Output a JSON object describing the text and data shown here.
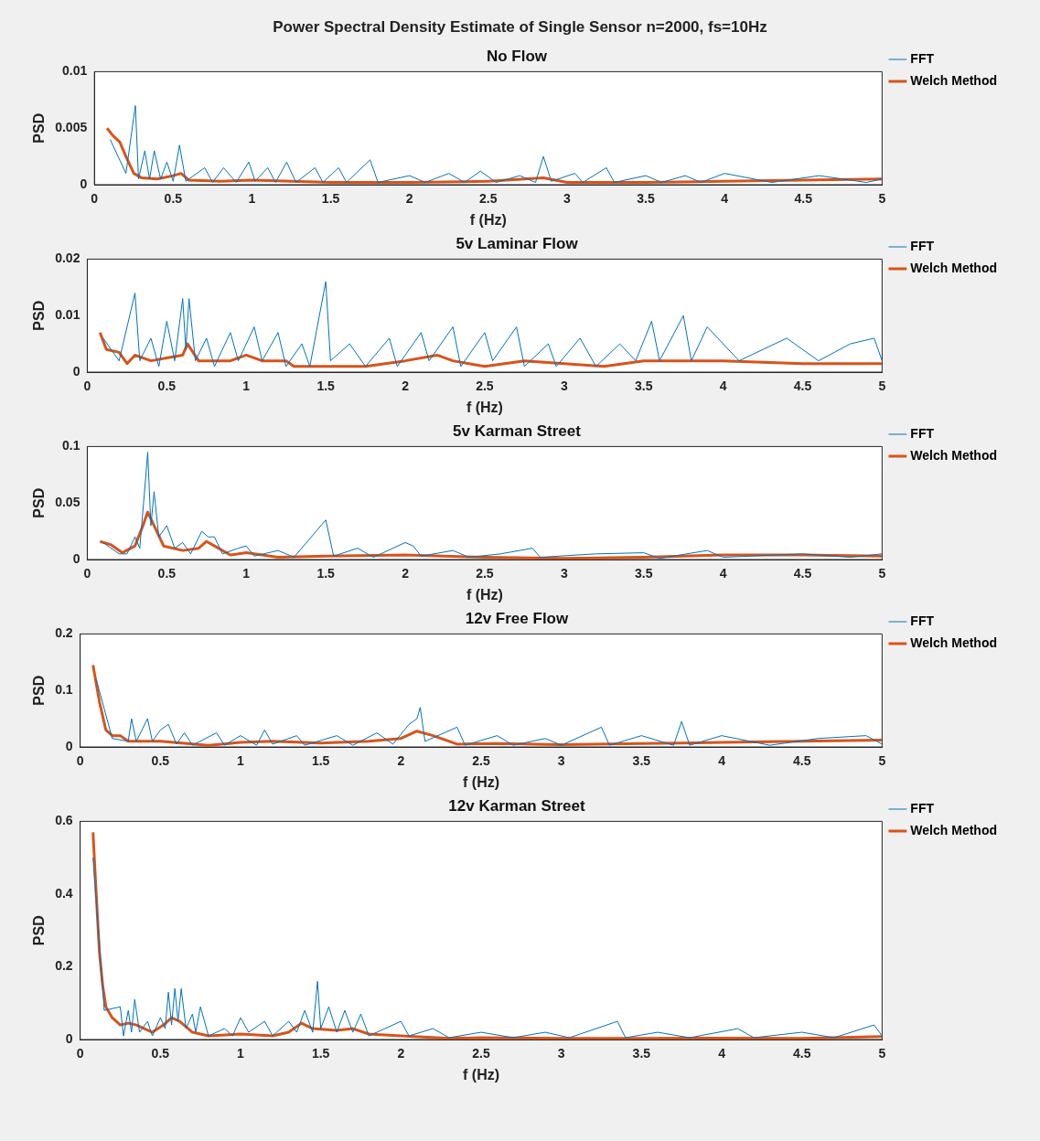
{
  "chart_data": [
    {
      "type": "line",
      "title": "No Flow",
      "xlabel": "f (Hz)",
      "ylabel": "PSD",
      "xlim": [
        0,
        5
      ],
      "xticks": [
        0,
        0.5,
        1,
        1.5,
        2,
        2.5,
        3,
        3.5,
        4,
        4.5,
        5
      ],
      "ylim": [
        0,
        0.01
      ],
      "yticks": [
        0,
        0.005,
        0.01
      ],
      "legend": "right",
      "annotations": [
        "Power Spectral Density Estimate of Single Sensor n=2000, fs=10Hz"
      ],
      "series": [
        {
          "name": "FFT",
          "color": "#0072bd",
          "x": [
            0.1,
            0.2,
            0.26,
            0.28,
            0.32,
            0.35,
            0.38,
            0.42,
            0.46,
            0.5,
            0.54,
            0.58,
            0.7,
            0.75,
            0.82,
            0.9,
            0.98,
            1.02,
            1.1,
            1.15,
            1.22,
            1.28,
            1.4,
            1.45,
            1.55,
            1.6,
            1.75,
            1.8,
            2.0,
            2.1,
            2.25,
            2.35,
            2.45,
            2.55,
            2.7,
            2.8,
            2.85,
            2.9,
            3.05,
            3.1,
            3.25,
            3.3,
            3.5,
            3.6,
            3.75,
            3.85,
            4.0,
            4.3,
            4.6,
            4.9,
            5
          ],
          "values": [
            0.004,
            0.001,
            0.007,
            0.0005,
            0.003,
            0.0005,
            0.003,
            0.0005,
            0.002,
            0.0003,
            0.0035,
            0.0003,
            0.0015,
            0.0002,
            0.0015,
            0.0002,
            0.002,
            0.0003,
            0.0015,
            0.0002,
            0.002,
            0.0002,
            0.0015,
            0.0002,
            0.0015,
            0.0002,
            0.0022,
            0.0002,
            0.0008,
            0.0002,
            0.001,
            0.0002,
            0.0012,
            0.0002,
            0.0008,
            0.0002,
            0.0025,
            0.0003,
            0.001,
            0.0002,
            0.0015,
            0.0002,
            0.0008,
            0.0002,
            0.0008,
            0.0002,
            0.001,
            0.0002,
            0.0008,
            0.0002,
            0.0005
          ]
        },
        {
          "name": "Welch Method",
          "color": "#d95319",
          "x": [
            0.08,
            0.12,
            0.16,
            0.2,
            0.25,
            0.3,
            0.4,
            0.5,
            0.55,
            0.6,
            0.8,
            1.0,
            1.5,
            2.0,
            2.5,
            2.85,
            3.0,
            3.5,
            4.0,
            4.5,
            5
          ],
          "values": [
            0.005,
            0.0043,
            0.0038,
            0.0025,
            0.001,
            0.0006,
            0.0005,
            0.0008,
            0.001,
            0.0004,
            0.0003,
            0.0004,
            0.0002,
            0.0002,
            0.0003,
            0.0006,
            0.0002,
            0.0002,
            0.0003,
            0.0004,
            0.0005
          ]
        }
      ]
    },
    {
      "type": "line",
      "title": "5v Laminar Flow",
      "xlabel": "f (Hz)",
      "ylabel": "PSD",
      "xlim": [
        0,
        5
      ],
      "xticks": [
        0,
        0.5,
        1,
        1.5,
        2,
        2.5,
        3,
        3.5,
        4,
        4.5,
        5
      ],
      "ylim": [
        0,
        0.02
      ],
      "yticks": [
        0,
        0.01,
        0.02
      ],
      "legend": "right",
      "series": [
        {
          "name": "FFT",
          "color": "#0072bd",
          "x": [
            0.1,
            0.2,
            0.3,
            0.33,
            0.4,
            0.45,
            0.5,
            0.55,
            0.6,
            0.62,
            0.64,
            0.68,
            0.75,
            0.8,
            0.9,
            0.95,
            1.05,
            1.1,
            1.2,
            1.25,
            1.35,
            1.4,
            1.5,
            1.53,
            1.65,
            1.75,
            1.9,
            1.95,
            2.1,
            2.15,
            2.3,
            2.35,
            2.5,
            2.55,
            2.7,
            2.75,
            2.9,
            2.95,
            3.1,
            3.2,
            3.35,
            3.45,
            3.55,
            3.6,
            3.75,
            3.8,
            3.9,
            4.1,
            4.4,
            4.6,
            4.8,
            4.95,
            5
          ],
          "values": [
            0.006,
            0.002,
            0.014,
            0.002,
            0.006,
            0.001,
            0.009,
            0.002,
            0.013,
            0.004,
            0.013,
            0.002,
            0.006,
            0.001,
            0.007,
            0.002,
            0.008,
            0.002,
            0.007,
            0.001,
            0.005,
            0.001,
            0.016,
            0.002,
            0.005,
            0.001,
            0.006,
            0.001,
            0.007,
            0.002,
            0.008,
            0.001,
            0.007,
            0.002,
            0.008,
            0.001,
            0.005,
            0.001,
            0.006,
            0.001,
            0.005,
            0.002,
            0.009,
            0.002,
            0.01,
            0.002,
            0.008,
            0.002,
            0.006,
            0.002,
            0.005,
            0.006,
            0.002
          ]
        },
        {
          "name": "Welch Method",
          "color": "#d95319",
          "x": [
            0.08,
            0.12,
            0.2,
            0.25,
            0.3,
            0.4,
            0.5,
            0.6,
            0.63,
            0.7,
            0.9,
            1.0,
            1.1,
            1.25,
            1.3,
            1.5,
            1.75,
            2.0,
            2.2,
            2.3,
            2.5,
            2.75,
            3.0,
            3.25,
            3.5,
            4.0,
            4.5,
            5
          ],
          "values": [
            0.007,
            0.004,
            0.0035,
            0.0015,
            0.003,
            0.002,
            0.0025,
            0.003,
            0.005,
            0.002,
            0.002,
            0.003,
            0.002,
            0.002,
            0.001,
            0.001,
            0.001,
            0.002,
            0.003,
            0.002,
            0.001,
            0.002,
            0.0015,
            0.001,
            0.002,
            0.002,
            0.0015,
            0.0015
          ]
        }
      ]
    },
    {
      "type": "line",
      "title": "5v Karman Street",
      "xlabel": "f (Hz)",
      "ylabel": "PSD",
      "xlim": [
        0,
        5
      ],
      "xticks": [
        0,
        0.5,
        1,
        1.5,
        2,
        2.5,
        3,
        3.5,
        4,
        4.5,
        5
      ],
      "ylim": [
        0,
        0.1
      ],
      "yticks": [
        0,
        0.05,
        0.1
      ],
      "legend": "right",
      "series": [
        {
          "name": "FFT",
          "color": "#0072bd",
          "x": [
            0.1,
            0.2,
            0.25,
            0.3,
            0.33,
            0.36,
            0.38,
            0.4,
            0.42,
            0.45,
            0.5,
            0.55,
            0.6,
            0.65,
            0.72,
            0.76,
            0.8,
            0.85,
            0.95,
            1.0,
            1.05,
            1.2,
            1.3,
            1.5,
            1.55,
            1.7,
            1.8,
            2.0,
            2.05,
            2.1,
            2.3,
            2.4,
            2.6,
            2.8,
            2.85,
            3.2,
            3.5,
            3.6,
            3.9,
            4.0,
            4.5,
            4.8,
            5
          ],
          "values": [
            0.015,
            0.005,
            0.005,
            0.02,
            0.01,
            0.06,
            0.095,
            0.03,
            0.06,
            0.02,
            0.03,
            0.01,
            0.015,
            0.005,
            0.025,
            0.02,
            0.02,
            0.005,
            0.01,
            0.012,
            0.003,
            0.008,
            0.002,
            0.035,
            0.003,
            0.01,
            0.002,
            0.015,
            0.012,
            0.003,
            0.008,
            0.002,
            0.005,
            0.01,
            0.002,
            0.005,
            0.006,
            0.001,
            0.008,
            0.002,
            0.005,
            0.002,
            0.005
          ]
        },
        {
          "name": "Welch Method",
          "color": "#d95319",
          "x": [
            0.08,
            0.15,
            0.22,
            0.3,
            0.35,
            0.38,
            0.42,
            0.48,
            0.6,
            0.7,
            0.75,
            0.8,
            0.9,
            1.0,
            1.2,
            1.5,
            2.0,
            2.5,
            3.0,
            3.5,
            4.0,
            4.5,
            5
          ],
          "values": [
            0.016,
            0.013,
            0.006,
            0.012,
            0.03,
            0.042,
            0.03,
            0.012,
            0.008,
            0.01,
            0.016,
            0.012,
            0.004,
            0.006,
            0.002,
            0.003,
            0.004,
            0.002,
            0.001,
            0.002,
            0.004,
            0.004,
            0.003
          ]
        }
      ]
    },
    {
      "type": "line",
      "title": "12v Free Flow",
      "xlabel": "f (Hz)",
      "ylabel": "PSD",
      "xlim": [
        0,
        5
      ],
      "xticks": [
        0,
        0.5,
        1,
        1.5,
        2,
        2.5,
        3,
        3.5,
        4,
        4.5,
        5
      ],
      "ylim": [
        0,
        0.2
      ],
      "yticks": [
        0,
        0.1,
        0.2
      ],
      "legend": "right",
      "series": [
        {
          "name": "FFT",
          "color": "#0072bd",
          "x": [
            0.1,
            0.2,
            0.3,
            0.32,
            0.35,
            0.42,
            0.45,
            0.5,
            0.55,
            0.6,
            0.65,
            0.7,
            0.85,
            0.9,
            1.0,
            1.1,
            1.15,
            1.2,
            1.35,
            1.4,
            1.6,
            1.7,
            1.85,
            1.95,
            2.05,
            2.1,
            2.12,
            2.15,
            2.35,
            2.4,
            2.6,
            2.7,
            2.9,
            3.0,
            3.25,
            3.3,
            3.5,
            3.7,
            3.75,
            3.8,
            4.0,
            4.3,
            4.6,
            4.9,
            5
          ],
          "values": [
            0.12,
            0.015,
            0.01,
            0.05,
            0.01,
            0.05,
            0.01,
            0.03,
            0.04,
            0.005,
            0.025,
            0.003,
            0.025,
            0.003,
            0.02,
            0.003,
            0.03,
            0.005,
            0.02,
            0.003,
            0.02,
            0.003,
            0.025,
            0.005,
            0.04,
            0.05,
            0.07,
            0.01,
            0.035,
            0.003,
            0.02,
            0.003,
            0.015,
            0.003,
            0.035,
            0.003,
            0.02,
            0.003,
            0.045,
            0.003,
            0.02,
            0.003,
            0.015,
            0.02,
            0.005
          ]
        },
        {
          "name": "Welch Method",
          "color": "#d95319",
          "x": [
            0.08,
            0.12,
            0.16,
            0.2,
            0.25,
            0.3,
            0.5,
            0.8,
            1.0,
            1.2,
            1.5,
            1.8,
            2.0,
            2.1,
            2.2,
            2.35,
            2.6,
            3.0,
            3.5,
            4.0,
            4.5,
            5
          ],
          "values": [
            0.145,
            0.08,
            0.03,
            0.02,
            0.02,
            0.01,
            0.01,
            0.003,
            0.008,
            0.01,
            0.007,
            0.01,
            0.015,
            0.028,
            0.02,
            0.005,
            0.006,
            0.004,
            0.006,
            0.008,
            0.01,
            0.012
          ]
        }
      ]
    },
    {
      "type": "line",
      "title": "12v Karman Street",
      "xlabel": "f (Hz)",
      "ylabel": "PSD",
      "xlim": [
        0,
        5
      ],
      "xticks": [
        0,
        0.5,
        1,
        1.5,
        2,
        2.5,
        3,
        3.5,
        4,
        4.5,
        5
      ],
      "ylim": [
        0,
        0.6
      ],
      "yticks": [
        0,
        0.2,
        0.4,
        0.6
      ],
      "legend": "right",
      "series": [
        {
          "name": "FFT",
          "color": "#0072bd",
          "x": [
            0.08,
            0.15,
            0.25,
            0.27,
            0.3,
            0.32,
            0.34,
            0.37,
            0.42,
            0.45,
            0.5,
            0.53,
            0.55,
            0.57,
            0.59,
            0.61,
            0.63,
            0.66,
            0.7,
            0.72,
            0.75,
            0.8,
            0.9,
            0.95,
            1.0,
            1.05,
            1.15,
            1.2,
            1.3,
            1.35,
            1.4,
            1.45,
            1.48,
            1.5,
            1.55,
            1.6,
            1.65,
            1.7,
            1.75,
            1.8,
            1.9,
            2.0,
            2.05,
            2.2,
            2.3,
            2.5,
            2.7,
            2.9,
            3.05,
            3.35,
            3.4,
            3.6,
            3.8,
            4.1,
            4.2,
            4.5,
            4.7,
            4.95,
            5
          ],
          "values": [
            0.5,
            0.08,
            0.09,
            0.01,
            0.08,
            0.02,
            0.11,
            0.02,
            0.05,
            0.01,
            0.06,
            0.03,
            0.13,
            0.04,
            0.14,
            0.05,
            0.14,
            0.03,
            0.07,
            0.02,
            0.09,
            0.01,
            0.03,
            0.01,
            0.06,
            0.02,
            0.05,
            0.01,
            0.05,
            0.02,
            0.08,
            0.02,
            0.16,
            0.03,
            0.09,
            0.02,
            0.08,
            0.02,
            0.07,
            0.01,
            0.03,
            0.05,
            0.01,
            0.03,
            0.005,
            0.02,
            0.005,
            0.02,
            0.005,
            0.05,
            0.005,
            0.02,
            0.005,
            0.03,
            0.005,
            0.02,
            0.005,
            0.04,
            0.01
          ]
        },
        {
          "name": "Welch Method",
          "color": "#d95319",
          "x": [
            0.08,
            0.1,
            0.12,
            0.14,
            0.16,
            0.2,
            0.25,
            0.3,
            0.35,
            0.45,
            0.52,
            0.57,
            0.62,
            0.7,
            0.8,
            1.0,
            1.2,
            1.3,
            1.38,
            1.45,
            1.6,
            1.7,
            1.8,
            2.0,
            2.3,
            2.5,
            3.0,
            3.5,
            4.0,
            4.5,
            5
          ],
          "values": [
            0.57,
            0.4,
            0.24,
            0.15,
            0.09,
            0.06,
            0.04,
            0.045,
            0.04,
            0.02,
            0.04,
            0.06,
            0.05,
            0.02,
            0.01,
            0.015,
            0.01,
            0.02,
            0.045,
            0.03,
            0.025,
            0.03,
            0.015,
            0.01,
            0.003,
            0.005,
            0.003,
            0.003,
            0.004,
            0.003,
            0.008
          ]
        }
      ]
    }
  ]
}
